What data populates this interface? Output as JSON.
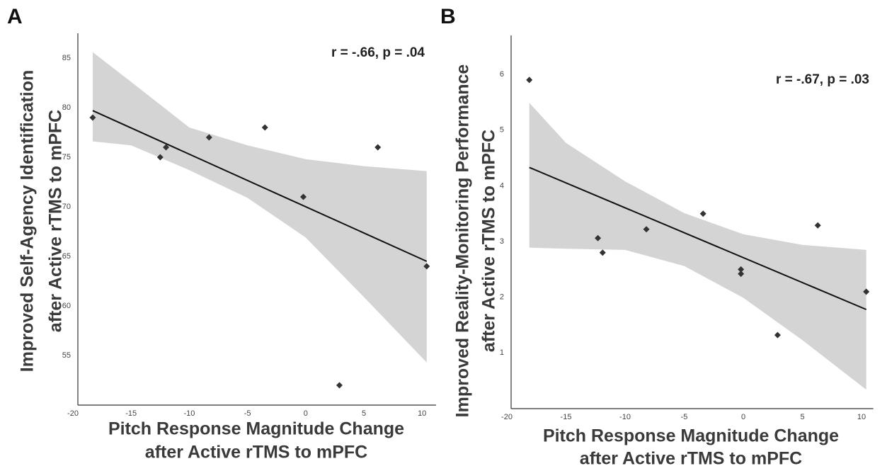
{
  "chart_data": [
    {
      "type": "scatter",
      "panel_label": "A",
      "annotation": "r = -.66, p = .04",
      "x_label": [
        "Pitch Response Magnitude Change",
        "after Active rTMS to mPFC"
      ],
      "y_label": [
        "Improved Self-Agency Identification",
        "after Active rTMS to mPFC"
      ],
      "x": [
        -18.3,
        -12.5,
        -12.0,
        -8.3,
        -3.5,
        -0.2,
        6.2,
        2.9,
        10.4
      ],
      "y": [
        79,
        75,
        76,
        77,
        78,
        71,
        76,
        52,
        64
      ],
      "fit": {
        "x": [
          -18.3,
          10.4
        ],
        "y": [
          79.7,
          64.5
        ]
      },
      "band": {
        "x": [
          -18.3,
          -15,
          -10,
          -5,
          0,
          5,
          10.4
        ],
        "upper": [
          85.6,
          82.6,
          78,
          76.2,
          74.8,
          74.1,
          73.6
        ],
        "lower": [
          76.6,
          76.2,
          73.7,
          70.9,
          66.9,
          60.9,
          54.3
        ]
      },
      "color": "#333333",
      "line_color": "#111111",
      "band_color": "#d4d4d4",
      "xlim": [
        -20,
        11.2
      ],
      "ylim": [
        50,
        87.5
      ],
      "xticks": [
        -20,
        -15,
        -10,
        -5,
        0,
        5,
        10
      ],
      "yticks": [
        55,
        60,
        65,
        70,
        75,
        80,
        85
      ]
    },
    {
      "type": "scatter",
      "panel_label": "B",
      "annotation": "r = -.67, p = .03",
      "x_label": [
        "Pitch Response Magnitude Change",
        "after Active rTMS to mPFC"
      ],
      "y_label": [
        "Improved Reality-Monitoring Performance",
        "after Active rTMS to mPFC"
      ],
      "x": [
        -18.1,
        -12.3,
        -11.9,
        -8.2,
        -3.4,
        -0.2,
        -0.2,
        6.3,
        2.9,
        10.4
      ],
      "y": [
        5.9,
        3.06,
        2.8,
        3.22,
        3.5,
        2.5,
        2.42,
        3.29,
        1.32,
        2.1
      ],
      "fit": {
        "x": [
          -18.1,
          10.4
        ],
        "y": [
          4.33,
          1.78
        ]
      },
      "band": {
        "x": [
          -18.1,
          -15,
          -10,
          -5,
          0,
          5,
          10.4
        ],
        "upper": [
          5.49,
          4.77,
          4.08,
          3.51,
          3.13,
          2.94,
          2.85
        ],
        "lower": [
          2.89,
          2.87,
          2.85,
          2.56,
          1.99,
          1.23,
          0.34
        ]
      },
      "color": "#333333",
      "line_color": "#111111",
      "band_color": "#d4d4d4",
      "xlim": [
        -20,
        11
      ],
      "ylim": [
        0,
        6.7
      ],
      "xticks": [
        -20,
        -15,
        -10,
        -5,
        0,
        5,
        10
      ],
      "yticks": [
        1,
        2,
        3,
        4,
        5,
        6
      ]
    }
  ]
}
